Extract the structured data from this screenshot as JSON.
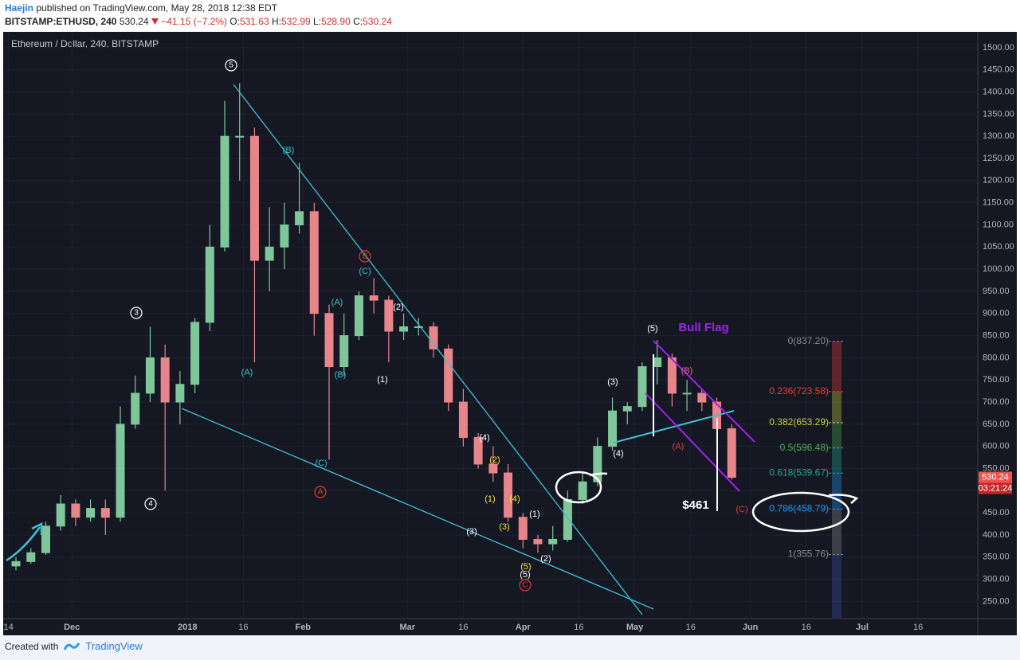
{
  "header": {
    "author": "Haejin",
    "published": " published on TradingView.com, May 28, 2018 12:38 EDT",
    "symbol": "BITSTAMP:ETHUSD, 240",
    "price": "530.24",
    "change": "−41.15 (−7.2%)",
    "ohlc": [
      {
        "key": "O:",
        "value": "531.63"
      },
      {
        "key": "H:",
        "value": "532.99"
      },
      {
        "key": "L:",
        "value": "528.90"
      },
      {
        "key": "C:",
        "value": "530.24"
      }
    ]
  },
  "footer": {
    "created": "Created with",
    "brand": "TradingView"
  },
  "chart_data": {
    "type": "candlestick",
    "title": "Ethereum / Dollar, 240, BITSTAMP",
    "up_color": "#7fc79a",
    "down_color": "#e8858a",
    "grid": true,
    "x": [
      "2017-11-14",
      "2017-11-18",
      "2017-11-22",
      "2017-11-26",
      "2017-11-30",
      "2017-12-04",
      "2017-12-08",
      "2017-12-12",
      "2017-12-16",
      "2017-12-20",
      "2017-12-24",
      "2017-12-28",
      "2018-01-01",
      "2018-01-05",
      "2018-01-09",
      "2018-01-13",
      "2018-01-17",
      "2018-01-21",
      "2018-01-25",
      "2018-01-29",
      "2018-02-02",
      "2018-02-06",
      "2018-02-10",
      "2018-02-14",
      "2018-02-18",
      "2018-02-22",
      "2018-02-26",
      "2018-03-02",
      "2018-03-06",
      "2018-03-10",
      "2018-03-14",
      "2018-03-18",
      "2018-03-22",
      "2018-03-26",
      "2018-03-30",
      "2018-04-03",
      "2018-04-07",
      "2018-04-11",
      "2018-04-15",
      "2018-04-19",
      "2018-04-23",
      "2018-04-27",
      "2018-05-01",
      "2018-05-05",
      "2018-05-09",
      "2018-05-13",
      "2018-05-17",
      "2018-05-21",
      "2018-05-25"
    ],
    "open": [
      330,
      340,
      360,
      420,
      470,
      440,
      460,
      440,
      650,
      720,
      800,
      700,
      740,
      880,
      1050,
      1300,
      1300,
      1020,
      1050,
      1100,
      1130,
      900,
      780,
      850,
      940,
      930,
      860,
      870,
      870,
      820,
      700,
      620,
      560,
      540,
      440,
      390,
      380,
      390,
      480,
      520,
      600,
      680,
      690,
      780,
      800,
      720,
      720,
      700,
      640
    ],
    "high": [
      350,
      370,
      430,
      490,
      480,
      480,
      480,
      690,
      760,
      870,
      830,
      770,
      890,
      1100,
      1380,
      1420,
      1320,
      1140,
      1150,
      1240,
      1150,
      920,
      900,
      950,
      980,
      940,
      900,
      890,
      880,
      830,
      730,
      630,
      600,
      560,
      450,
      400,
      420,
      500,
      540,
      620,
      710,
      700,
      790,
      840,
      810,
      750,
      730,
      710,
      650
    ],
    "low": [
      320,
      335,
      355,
      410,
      420,
      430,
      400,
      430,
      640,
      700,
      500,
      650,
      720,
      860,
      1040,
      1200,
      790,
      950,
      1000,
      1080,
      850,
      570,
      760,
      840,
      900,
      790,
      840,
      850,
      800,
      680,
      600,
      550,
      520,
      430,
      370,
      360,
      365,
      385,
      470,
      510,
      590,
      650,
      680,
      740,
      690,
      680,
      680,
      600,
      525
    ],
    "close": [
      340,
      360,
      420,
      470,
      440,
      460,
      440,
      650,
      720,
      800,
      700,
      740,
      880,
      1050,
      1300,
      1300,
      1020,
      1050,
      1100,
      1130,
      900,
      780,
      850,
      940,
      930,
      860,
      870,
      870,
      820,
      700,
      620,
      560,
      540,
      440,
      390,
      380,
      390,
      480,
      520,
      600,
      680,
      690,
      780,
      800,
      720,
      720,
      700,
      640,
      530
    ],
    "xlim": [
      "2017-11-13",
      "2018-08-01"
    ],
    "xticks": [
      {
        "value": "2017-11-14",
        "label": "14"
      },
      {
        "value": "2017-12-01",
        "label": "Dec"
      },
      {
        "value": "2018-01-01",
        "label": "2018"
      },
      {
        "value": "2018-01-16",
        "label": "16"
      },
      {
        "value": "2018-02-01",
        "label": "Feb"
      },
      {
        "value": "2018-03-01",
        "label": "Mar"
      },
      {
        "value": "2018-03-16",
        "label": "16"
      },
      {
        "value": "2018-04-01",
        "label": "Apr"
      },
      {
        "value": "2018-04-16",
        "label": "16"
      },
      {
        "value": "2018-05-01",
        "label": "May"
      },
      {
        "value": "2018-05-16",
        "label": "16"
      },
      {
        "value": "2018-06-01",
        "label": "Jun"
      },
      {
        "value": "2018-06-16",
        "label": "16"
      },
      {
        "value": "2018-07-01",
        "label": "Jul"
      },
      {
        "value": "2018-07-16",
        "label": "16"
      }
    ],
    "ylim": [
      213,
      1534
    ],
    "yticks": [
      {
        "value": 250,
        "label": "250.00"
      },
      {
        "value": 300,
        "label": "300.00"
      },
      {
        "value": 350,
        "label": "350.00"
      },
      {
        "value": 400,
        "label": "400.00"
      },
      {
        "value": 450,
        "label": "450.00"
      },
      {
        "value": 500,
        "label": "500.00"
      },
      {
        "value": 550,
        "label": "550.00"
      },
      {
        "value": 600,
        "label": "600.00"
      },
      {
        "value": 650,
        "label": "650.00"
      },
      {
        "value": 700,
        "label": "700.00"
      },
      {
        "value": 750,
        "label": "750.00"
      },
      {
        "value": 800,
        "label": "800.00"
      },
      {
        "value": 850,
        "label": "850.00"
      },
      {
        "value": 900,
        "label": "900.00"
      },
      {
        "value": 950,
        "label": "950.00"
      },
      {
        "value": 1000,
        "label": "1000.00"
      },
      {
        "value": 1050,
        "label": "1050.00"
      },
      {
        "value": 1100,
        "label": "1100.00"
      },
      {
        "value": 1150,
        "label": "1150.00"
      },
      {
        "value": 1200,
        "label": "1200.00"
      },
      {
        "value": 1250,
        "label": "1250.00"
      },
      {
        "value": 1300,
        "label": "1300.00"
      },
      {
        "value": 1350,
        "label": "1350.00"
      },
      {
        "value": 1400,
        "label": "1400.00"
      },
      {
        "value": 1450,
        "label": "1450.00"
      },
      {
        "value": 1500,
        "label": "1500.00"
      }
    ],
    "fib": [
      {
        "value": 837.2,
        "label": "0(837.20)",
        "color": "#8a8a8a"
      },
      {
        "value": 723.58,
        "label": "0.236(723.58)",
        "color": "#ef3b3b"
      },
      {
        "value": 653.29,
        "label": "0.382(653.29)",
        "color": "#c8d23a"
      },
      {
        "value": 596.48,
        "label": "0.5(596.48)",
        "color": "#4caf50"
      },
      {
        "value": 539.67,
        "label": "0.618(539.67)",
        "color": "#26a69a"
      },
      {
        "value": 458.79,
        "label": "0.786(458.79)",
        "color": "#2196f3"
      },
      {
        "value": 355.76,
        "label": "1(355.76)",
        "color": "#8a8a8a"
      }
    ],
    "last_price": {
      "value": 530.24,
      "label": "530.24"
    },
    "countdown": "03:21:24",
    "annotations": [
      "5",
      "3",
      "4",
      "(B)",
      "(A)",
      "(C)",
      "A",
      "B",
      "(C)",
      "(A)",
      "(B)",
      "(2)",
      "(1)",
      "(4)",
      "(2)",
      "(1)",
      "(4)",
      "(3)",
      "(3)",
      "(1)",
      "(5)",
      "(5)",
      "C",
      "(2)",
      "(3)",
      "(4)",
      "(5)",
      "(B)",
      "(A)",
      "(C)",
      "Bull Flag",
      "$461"
    ]
  }
}
